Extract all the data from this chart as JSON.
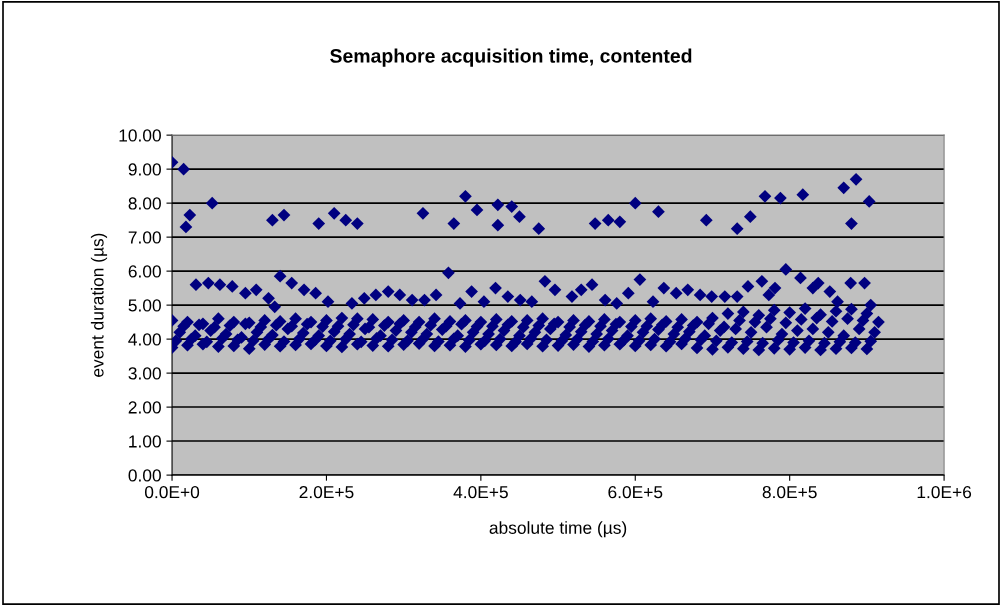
{
  "chart_data": {
    "type": "scatter",
    "title": "Semaphore acquisition time, contented",
    "xlabel": "absolute time (µs)",
    "ylabel": "event duration (µs)",
    "xlim": [
      0,
      1000000
    ],
    "xticks": [
      {
        "value": 0,
        "label": "0.0E+0"
      },
      {
        "value": 200000,
        "label": "2.0E+5"
      },
      {
        "value": 400000,
        "label": "4.0E+5"
      },
      {
        "value": 600000,
        "label": "6.0E+5"
      },
      {
        "value": 800000,
        "label": "8.0E+5"
      },
      {
        "value": 1000000,
        "label": "1.0E+6"
      }
    ],
    "ylim": [
      0,
      10
    ],
    "yticks": [
      {
        "value": 0,
        "label": "0.00"
      },
      {
        "value": 1,
        "label": "1.00"
      },
      {
        "value": 2,
        "label": "2.00"
      },
      {
        "value": 3,
        "label": "3.00"
      },
      {
        "value": 4,
        "label": "4.00"
      },
      {
        "value": 5,
        "label": "5.00"
      },
      {
        "value": 6,
        "label": "6.00"
      },
      {
        "value": 7,
        "label": "7.00"
      },
      {
        "value": 8,
        "label": "8.00"
      },
      {
        "value": 9,
        "label": "9.00"
      },
      {
        "value": 10,
        "label": "10.00"
      }
    ],
    "grid": "y",
    "marker": "diamond",
    "series": [
      {
        "color": "#000080",
        "x": [
          0,
          15000,
          18000,
          23000,
          52000,
          130000,
          145000,
          190000,
          210000,
          225000,
          240000,
          325000,
          365000,
          380000,
          395000,
          422000,
          422000,
          440000,
          450000,
          475000,
          548000,
          565000,
          580000,
          600000,
          630000,
          692000,
          732000,
          749000,
          768000,
          788000,
          817000,
          870000,
          886000,
          880000,
          903000
        ],
        "values": [
          9.2,
          9.0,
          7.3,
          7.65,
          8.0,
          7.5,
          7.65,
          7.4,
          7.7,
          7.5,
          7.4,
          7.7,
          7.4,
          8.2,
          7.8,
          7.35,
          7.95,
          7.9,
          7.6,
          7.25,
          7.4,
          7.5,
          7.45,
          8.0,
          7.75,
          7.5,
          7.25,
          7.6,
          8.2,
          8.15,
          8.25,
          8.45,
          8.7,
          7.4,
          8.05
        ]
      },
      {
        "color": "#000080",
        "x": [
          31000,
          47000,
          62000,
          78000,
          95000,
          109000,
          125000,
          133000,
          140000,
          155000,
          171000,
          186000,
          202000,
          233000,
          249000,
          264000,
          280000,
          295000,
          311000,
          327000,
          342000,
          358000,
          373000,
          388000,
          404000,
          419000,
          435000,
          451000,
          466000,
          483000,
          496000,
          518000,
          530000,
          544000,
          561000,
          576000,
          591000,
          606000,
          623000,
          637000,
          653000,
          668000,
          684000,
          699000,
          716000,
          732000,
          746000,
          764000,
          773000,
          781000,
          795000,
          814000,
          830000,
          837000,
          852000,
          862000,
          879000,
          897000,
          905000
        ],
        "values": [
          5.6,
          5.65,
          5.6,
          5.55,
          5.35,
          5.45,
          5.2,
          4.95,
          5.85,
          5.65,
          5.45,
          5.35,
          5.1,
          5.05,
          5.2,
          5.3,
          5.4,
          5.3,
          5.15,
          5.15,
          5.3,
          5.95,
          5.05,
          5.4,
          5.1,
          5.5,
          5.25,
          5.15,
          5.1,
          5.7,
          5.45,
          5.25,
          5.45,
          5.6,
          5.15,
          5.05,
          5.35,
          5.75,
          5.1,
          5.5,
          5.35,
          5.45,
          5.3,
          5.25,
          5.25,
          5.25,
          5.55,
          5.7,
          5.3,
          5.5,
          6.05,
          5.8,
          5.5,
          5.65,
          5.4,
          5.1,
          5.65,
          5.65,
          5.0
        ]
      },
      {
        "color": "#000080",
        "x": [
          0,
          20000,
          40000,
          60000,
          80000,
          100000,
          120000,
          140000,
          160000,
          180000,
          200000,
          220000,
          240000,
          260000,
          280000,
          300000,
          320000,
          340000,
          360000,
          380000,
          400000,
          420000,
          440000,
          460000,
          480000,
          500000,
          520000,
          540000,
          560000,
          580000,
          600000,
          620000,
          640000,
          660000,
          680000,
          700000,
          720000,
          740000,
          760000,
          780000,
          800000,
          820000,
          840000,
          860000,
          880000,
          900000
        ],
        "values": [
          3.75,
          3.82,
          3.85,
          3.78,
          3.8,
          3.72,
          3.84,
          3.79,
          3.83,
          3.86,
          3.8,
          3.77,
          3.85,
          3.81,
          3.79,
          3.84,
          3.87,
          3.8,
          3.82,
          3.78,
          3.85,
          3.83,
          3.8,
          3.86,
          3.79,
          3.81,
          3.84,
          3.78,
          3.82,
          3.85,
          3.8,
          3.83,
          3.79,
          3.86,
          3.74,
          3.7,
          3.76,
          3.72,
          3.68,
          3.73,
          3.7,
          3.75,
          3.68,
          3.72,
          3.74,
          3.71
        ]
      },
      {
        "color": "#000080",
        "x": [
          0,
          20000,
          40000,
          60000,
          80000,
          100000,
          120000,
          140000,
          160000,
          180000,
          200000,
          220000,
          240000,
          260000,
          280000,
          300000,
          320000,
          340000,
          360000,
          380000,
          400000,
          420000,
          440000,
          460000,
          480000,
          500000,
          520000,
          540000,
          560000,
          580000,
          600000,
          620000,
          640000,
          660000,
          680000,
          700000,
          720000,
          740000,
          760000,
          780000,
          800000,
          820000,
          840000,
          860000,
          880000,
          900000
        ],
        "values": [
          4.55,
          4.5,
          4.45,
          4.6,
          4.5,
          4.48,
          4.55,
          4.52,
          4.6,
          4.5,
          4.55,
          4.62,
          4.6,
          4.58,
          4.5,
          4.55,
          4.5,
          4.6,
          4.52,
          4.55,
          4.5,
          4.58,
          4.52,
          4.55,
          4.6,
          4.5,
          4.55,
          4.52,
          4.58,
          4.5,
          4.55,
          4.6,
          4.52,
          4.58,
          4.5,
          4.62,
          4.75,
          4.8,
          4.7,
          4.85,
          4.78,
          4.9,
          4.72,
          4.82,
          4.88,
          4.75
        ]
      },
      {
        "color": "#000080",
        "x": [
          10000,
          30000,
          50000,
          70000,
          90000,
          110000,
          130000,
          150000,
          170000,
          190000,
          210000,
          230000,
          250000,
          270000,
          290000,
          310000,
          330000,
          350000,
          370000,
          390000,
          410000,
          430000,
          450000,
          470000,
          490000,
          510000,
          530000,
          550000,
          570000,
          590000,
          610000,
          630000,
          650000,
          670000,
          690000,
          710000,
          730000,
          750000,
          770000,
          790000,
          810000,
          830000,
          850000,
          870000,
          890000,
          910000
        ],
        "values": [
          4.2,
          4.1,
          4.25,
          4.15,
          4.05,
          4.2,
          4.12,
          4.3,
          4.18,
          4.1,
          4.22,
          4.15,
          4.3,
          4.1,
          4.25,
          4.2,
          4.15,
          4.28,
          4.1,
          4.2,
          4.15,
          4.25,
          4.1,
          4.2,
          4.3,
          4.12,
          4.22,
          4.15,
          4.25,
          4.1,
          4.2,
          4.28,
          4.15,
          4.22,
          4.1,
          4.25,
          4.3,
          4.2,
          4.35,
          4.15,
          4.25,
          4.3,
          4.2,
          4.1,
          4.3,
          4.2
        ]
      },
      {
        "color": "#000080",
        "x": [
          5000,
          25000,
          45000,
          65000,
          85000,
          105000,
          125000,
          145000,
          165000,
          185000,
          205000,
          225000,
          245000,
          265000,
          285000,
          305000,
          325000,
          345000,
          365000,
          385000,
          405000,
          425000,
          445000,
          465000,
          485000,
          505000,
          525000,
          545000,
          565000,
          585000,
          605000,
          625000,
          645000,
          665000,
          685000,
          705000,
          725000,
          745000,
          765000,
          785000,
          805000,
          825000,
          845000,
          865000,
          885000,
          905000
        ],
        "values": [
          3.95,
          4.0,
          3.92,
          4.02,
          3.98,
          3.95,
          4.0,
          3.93,
          4.01,
          3.97,
          3.95,
          4.0,
          3.92,
          4.02,
          3.98,
          3.95,
          4.0,
          3.93,
          4.01,
          3.97,
          3.95,
          4.0,
          3.92,
          4.02,
          3.98,
          3.95,
          4.0,
          3.93,
          4.01,
          3.97,
          3.95,
          4.0,
          3.92,
          4.02,
          3.98,
          3.95,
          3.9,
          3.93,
          3.88,
          3.97,
          3.9,
          3.95,
          3.88,
          3.92,
          3.9,
          3.94
        ]
      },
      {
        "color": "#000080",
        "x": [
          15000,
          35000,
          55000,
          75000,
          95000,
          115000,
          135000,
          155000,
          175000,
          195000,
          215000,
          235000,
          255000,
          275000,
          295000,
          315000,
          335000,
          355000,
          375000,
          395000,
          415000,
          435000,
          455000,
          475000,
          495000,
          515000,
          535000,
          555000,
          575000,
          595000,
          615000,
          635000,
          655000,
          675000,
          695000,
          715000,
          735000,
          755000,
          775000,
          795000,
          815000,
          835000,
          855000,
          875000,
          895000,
          915000
        ],
        "values": [
          4.38,
          4.42,
          4.35,
          4.4,
          4.45,
          4.36,
          4.41,
          4.38,
          4.44,
          4.37,
          4.38,
          4.42,
          4.35,
          4.4,
          4.45,
          4.36,
          4.41,
          4.38,
          4.44,
          4.37,
          4.38,
          4.42,
          4.35,
          4.4,
          4.45,
          4.36,
          4.41,
          4.38,
          4.44,
          4.37,
          4.38,
          4.42,
          4.35,
          4.4,
          4.45,
          4.36,
          4.55,
          4.5,
          4.6,
          4.48,
          4.58,
          4.62,
          4.52,
          4.6,
          4.55,
          4.5
        ]
      }
    ]
  }
}
